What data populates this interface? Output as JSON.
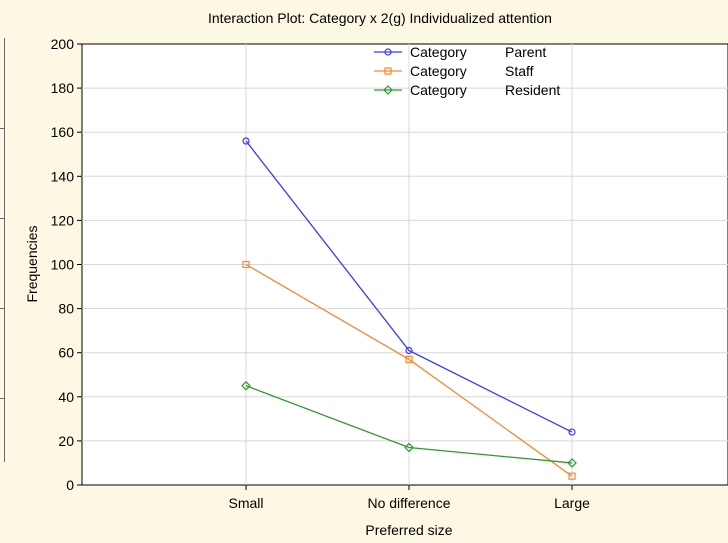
{
  "chart_data": {
    "type": "line",
    "title": "Interaction Plot: Category x 2(g) Individualized attention",
    "xlabel": "Preferred size",
    "ylabel": "Frequencies",
    "categories": [
      "Small",
      "No difference",
      "Large"
    ],
    "ylim": [
      0,
      200
    ],
    "yticks": [
      0,
      20,
      40,
      60,
      80,
      100,
      120,
      140,
      160,
      180,
      200
    ],
    "grid": true,
    "legend_position": "top-center",
    "series": [
      {
        "legend_prefix": "Category",
        "name": "Parent",
        "color": "#3a3af0",
        "marker": "circle",
        "values": [
          156,
          61,
          24
        ]
      },
      {
        "legend_prefix": "Category",
        "name": "Staff",
        "color": "#f08a30",
        "marker": "square",
        "values": [
          100,
          57,
          4
        ]
      },
      {
        "legend_prefix": "Category",
        "name": "Resident",
        "color": "#2e9a2e",
        "marker": "diamond",
        "values": [
          45,
          17,
          10
        ]
      }
    ]
  }
}
